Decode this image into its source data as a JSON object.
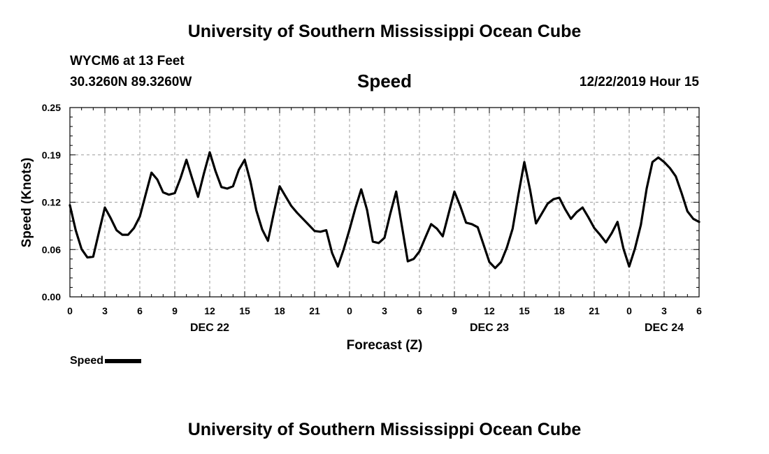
{
  "header": {
    "title": "University of Southern Mississippi Ocean Cube",
    "footer_title": "University of Southern Mississippi Ocean Cube",
    "station": "WYCM6 at 13 Feet",
    "coords": "30.3260N 89.3260W",
    "datetime": "12/22/2019 Hour 15"
  },
  "chart_data": {
    "type": "line",
    "title": "Speed",
    "xlabel": "Forecast (Z)",
    "ylabel": "Speed (Knots)",
    "xlim": [
      0,
      54
    ],
    "ylim": [
      0,
      0.25
    ],
    "yticks": [
      "0.00",
      "0.06",
      "0.12",
      "0.19",
      "0.25"
    ],
    "ytick_values": [
      0.0,
      0.0625,
      0.125,
      0.1875,
      0.25
    ],
    "xtick_positions": [
      0,
      3,
      6,
      9,
      12,
      15,
      18,
      21,
      24,
      27,
      30,
      33,
      36,
      39,
      42,
      45,
      48,
      51,
      54
    ],
    "xtick_labels": [
      "0",
      "3",
      "6",
      "9",
      "12",
      "15",
      "18",
      "21",
      "0",
      "3",
      "6",
      "9",
      "12",
      "15",
      "18",
      "21",
      "0",
      "3",
      "6"
    ],
    "day_labels": [
      {
        "label": "DEC 22",
        "hour": 12
      },
      {
        "label": "DEC 23",
        "hour": 36
      },
      {
        "label": "DEC 24",
        "hour": 51
      }
    ],
    "grid": true,
    "legend": "bottom-left",
    "series": [
      {
        "name": "Speed",
        "color": "#000000",
        "x": [
          0,
          0.5,
          1,
          1.5,
          2,
          2.5,
          3,
          3.5,
          4,
          4.5,
          5,
          5.5,
          6,
          6.5,
          7,
          7.5,
          8,
          8.5,
          9,
          9.5,
          10,
          10.5,
          11,
          11.5,
          12,
          12.5,
          13,
          13.5,
          14,
          14.5,
          15,
          15.5,
          16,
          16.5,
          17,
          17.5,
          18,
          18.5,
          19,
          19.5,
          20,
          20.5,
          21,
          21.5,
          22,
          22.5,
          23,
          23.5,
          24,
          24.5,
          25,
          25.5,
          26,
          26.5,
          27,
          27.5,
          28,
          28.5,
          29,
          29.5,
          30,
          30.5,
          31,
          31.5,
          32,
          32.5,
          33,
          33.5,
          34,
          34.5,
          35,
          35.5,
          36,
          36.5,
          37,
          37.5,
          38,
          38.5,
          39,
          39.5,
          40,
          40.5,
          41,
          41.5,
          42,
          42.5,
          43,
          43.5,
          44,
          44.5,
          45,
          45.5,
          46,
          46.5,
          47,
          47.5,
          48,
          48.5,
          49,
          49.5,
          50,
          50.5,
          51,
          51.5,
          52,
          52.5,
          53,
          53.5,
          54
        ],
        "values": [
          0.121,
          0.088,
          0.063,
          0.052,
          0.053,
          0.086,
          0.118,
          0.104,
          0.088,
          0.082,
          0.082,
          0.091,
          0.106,
          0.135,
          0.164,
          0.155,
          0.138,
          0.135,
          0.137,
          0.157,
          0.181,
          0.156,
          0.132,
          0.163,
          0.191,
          0.166,
          0.145,
          0.143,
          0.146,
          0.168,
          0.181,
          0.152,
          0.114,
          0.089,
          0.074,
          0.111,
          0.146,
          0.133,
          0.12,
          0.111,
          0.103,
          0.095,
          0.087,
          0.086,
          0.088,
          0.058,
          0.04,
          0.063,
          0.089,
          0.117,
          0.142,
          0.115,
          0.073,
          0.071,
          0.078,
          0.11,
          0.139,
          0.093,
          0.047,
          0.05,
          0.06,
          0.078,
          0.096,
          0.09,
          0.08,
          0.11,
          0.139,
          0.12,
          0.098,
          0.096,
          0.092,
          0.069,
          0.046,
          0.038,
          0.046,
          0.065,
          0.09,
          0.136,
          0.178,
          0.141,
          0.097,
          0.11,
          0.123,
          0.129,
          0.131,
          0.116,
          0.103,
          0.112,
          0.118,
          0.105,
          0.091,
          0.082,
          0.072,
          0.084,
          0.099,
          0.064,
          0.04,
          0.064,
          0.095,
          0.143,
          0.178,
          0.184,
          0.178,
          0.17,
          0.159,
          0.137,
          0.113,
          0.103,
          0.099
        ]
      }
    ]
  }
}
